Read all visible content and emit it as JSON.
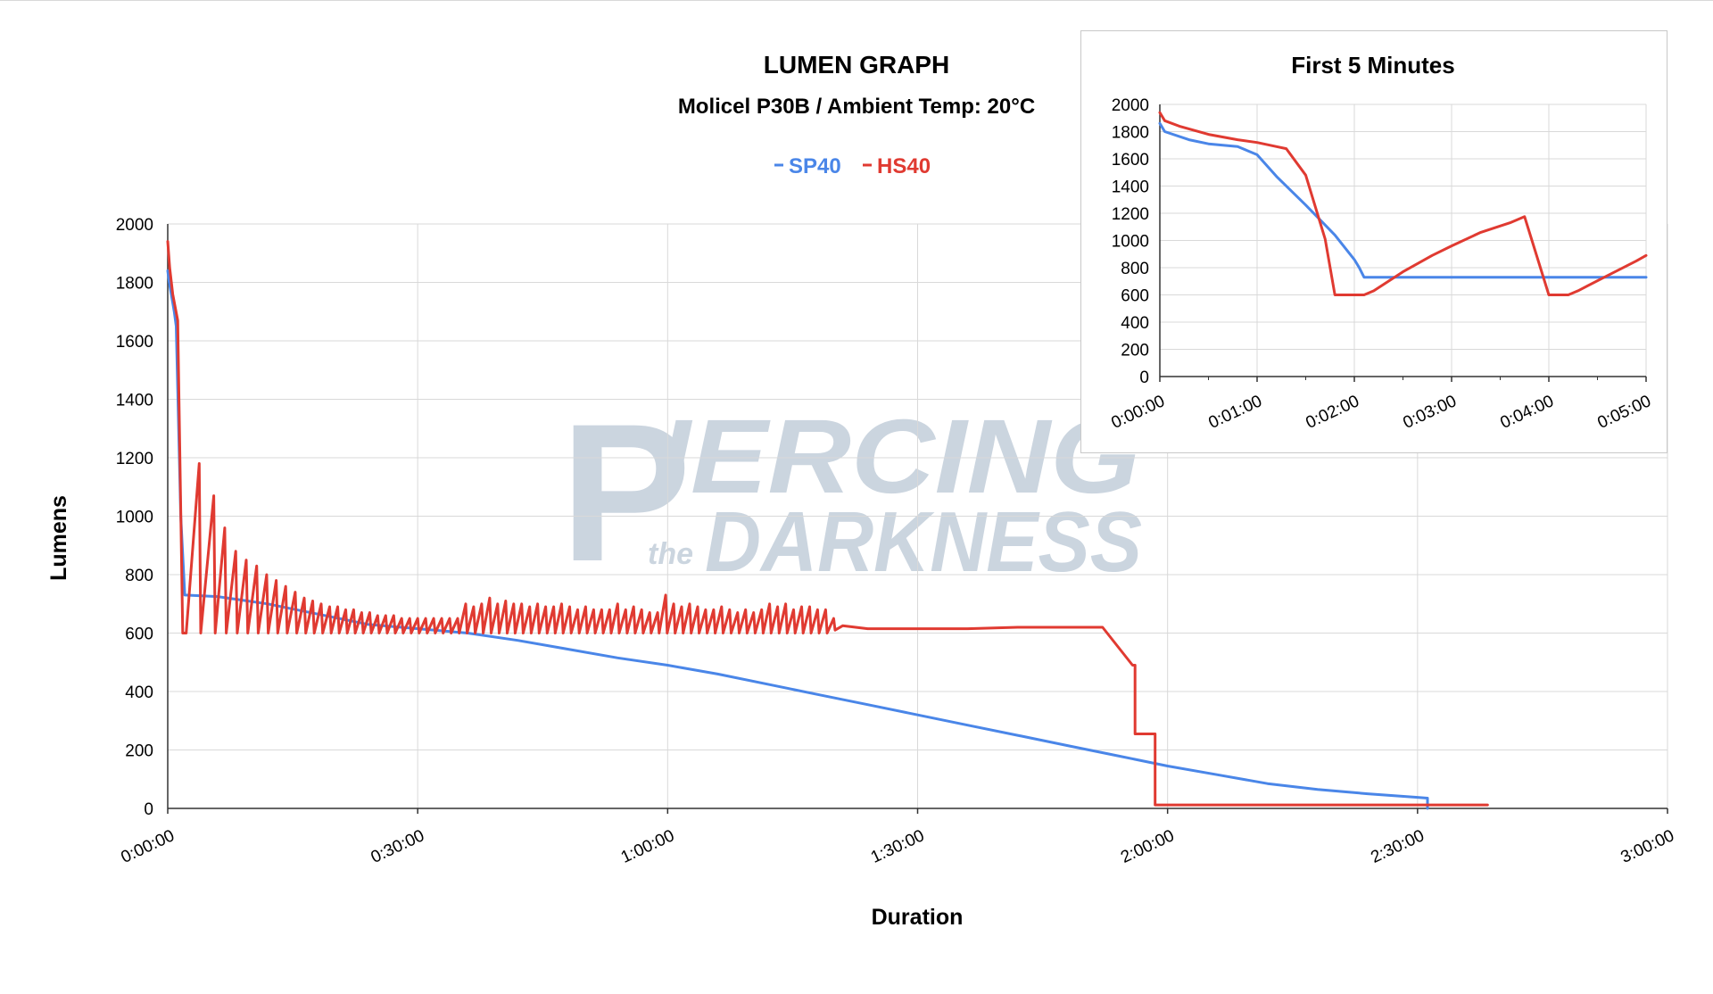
{
  "watermark": {
    "main": "IERCING",
    "sub": "DARKNESS",
    "small": "the",
    "initial": "P",
    "color": "#c9d3de"
  },
  "chart_data": [
    {
      "type": "line",
      "title": "LUMEN GRAPH",
      "subtitle": "Molicel P30B / Ambient Temp: 20°C",
      "xlabel": "Duration",
      "ylabel": "Lumens",
      "x_unit": "hours",
      "xlim": [
        0,
        3
      ],
      "ylim": [
        0,
        2000
      ],
      "yticks": [
        0,
        200,
        400,
        600,
        800,
        1000,
        1200,
        1400,
        1600,
        1800,
        2000
      ],
      "xticks": [
        {
          "x": 0,
          "label": "0:00:00"
        },
        {
          "x": 0.5,
          "label": "0:30:00"
        },
        {
          "x": 1,
          "label": "1:00:00"
        },
        {
          "x": 1.5,
          "label": "1:30:00"
        },
        {
          "x": 2,
          "label": "2:00:00"
        },
        {
          "x": 2.5,
          "label": "2:30:00"
        },
        {
          "x": 3,
          "label": "3:00:00"
        }
      ],
      "grid": true,
      "legend_position": "top-center",
      "series": [
        {
          "name": "SP40",
          "color": "#4a86e8",
          "points": [
            [
              0,
              1840
            ],
            [
              0.003,
              1800
            ],
            [
              0.013,
              1700
            ],
            [
              0.017,
              1650
            ],
            [
              0.026,
              1000
            ],
            [
              0.034,
              730
            ],
            [
              0.1,
              725
            ],
            [
              0.2,
              700
            ],
            [
              0.3,
              665
            ],
            [
              0.4,
              630
            ],
            [
              0.5,
              615
            ],
            [
              0.6,
              600
            ],
            [
              0.7,
              575
            ],
            [
              0.8,
              545
            ],
            [
              0.9,
              515
            ],
            [
              1.0,
              490
            ],
            [
              1.1,
              460
            ],
            [
              1.2,
              425
            ],
            [
              1.3,
              390
            ],
            [
              1.4,
              355
            ],
            [
              1.5,
              320
            ],
            [
              1.6,
              285
            ],
            [
              1.7,
              250
            ],
            [
              1.8,
              215
            ],
            [
              1.9,
              180
            ],
            [
              2.0,
              145
            ],
            [
              2.1,
              115
            ],
            [
              2.2,
              85
            ],
            [
              2.3,
              65
            ],
            [
              2.4,
              50
            ],
            [
              2.5,
              38
            ],
            [
              2.52,
              35
            ],
            [
              2.52,
              0
            ]
          ]
        },
        {
          "name": "HS40",
          "color": "#e03a31",
          "points": [
            [
              0,
              1940
            ],
            [
              0.004,
              1850
            ],
            [
              0.01,
              1760
            ],
            [
              0.02,
              1670
            ],
            [
              0.03,
              600
            ],
            [
              0.037,
              600
            ],
            [
              0.063,
              1180
            ],
            [
              0.066,
              600
            ],
            [
              0.092,
              1070
            ],
            [
              0.095,
              600
            ],
            [
              0.114,
              960
            ],
            [
              0.117,
              600
            ],
            [
              0.136,
              880
            ],
            [
              0.139,
              600
            ],
            [
              0.157,
              850
            ],
            [
              0.16,
              600
            ],
            [
              0.178,
              830
            ],
            [
              0.181,
              600
            ],
            [
              0.198,
              800
            ],
            [
              0.201,
              600
            ],
            [
              0.217,
              780
            ],
            [
              0.22,
              600
            ],
            [
              0.236,
              760
            ],
            [
              0.239,
              600
            ],
            [
              0.255,
              740
            ],
            [
              0.258,
              600
            ],
            [
              0.273,
              720
            ],
            [
              0.276,
              600
            ],
            [
              0.29,
              710
            ],
            [
              0.293,
              600
            ],
            [
              0.307,
              700
            ],
            [
              0.31,
              600
            ],
            [
              0.324,
              690
            ],
            [
              0.327,
              600
            ],
            [
              0.34,
              690
            ],
            [
              0.343,
              600
            ],
            [
              0.356,
              680
            ],
            [
              0.359,
              600
            ],
            [
              0.372,
              680
            ],
            [
              0.375,
              600
            ],
            [
              0.388,
              670
            ],
            [
              0.391,
              600
            ],
            [
              0.404,
              670
            ],
            [
              0.407,
              600
            ],
            [
              0.42,
              660
            ],
            [
              0.423,
              600
            ],
            [
              0.436,
              660
            ],
            [
              0.439,
              600
            ],
            [
              0.452,
              660
            ],
            [
              0.455,
              600
            ],
            [
              0.468,
              650
            ],
            [
              0.471,
              600
            ],
            [
              0.484,
              650
            ],
            [
              0.487,
              600
            ],
            [
              0.5,
              650
            ],
            [
              0.503,
              600
            ],
            [
              0.516,
              650
            ],
            [
              0.519,
              600
            ],
            [
              0.532,
              650
            ],
            [
              0.535,
              600
            ],
            [
              0.548,
              650
            ],
            [
              0.551,
              600
            ],
            [
              0.564,
              650
            ],
            [
              0.567,
              600
            ],
            [
              0.58,
              650
            ],
            [
              0.583,
              600
            ],
            [
              0.596,
              700
            ],
            [
              0.599,
              600
            ],
            [
              0.612,
              690
            ],
            [
              0.615,
              600
            ],
            [
              0.628,
              700
            ],
            [
              0.631,
              600
            ],
            [
              0.644,
              720
            ],
            [
              0.647,
              600
            ],
            [
              0.66,
              700
            ],
            [
              0.663,
              600
            ],
            [
              0.676,
              710
            ],
            [
              0.679,
              600
            ],
            [
              0.692,
              700
            ],
            [
              0.695,
              600
            ],
            [
              0.708,
              700
            ],
            [
              0.711,
              600
            ],
            [
              0.724,
              690
            ],
            [
              0.727,
              600
            ],
            [
              0.74,
              700
            ],
            [
              0.743,
              600
            ],
            [
              0.756,
              690
            ],
            [
              0.759,
              600
            ],
            [
              0.772,
              690
            ],
            [
              0.775,
              600
            ],
            [
              0.788,
              700
            ],
            [
              0.791,
              600
            ],
            [
              0.804,
              690
            ],
            [
              0.807,
              600
            ],
            [
              0.82,
              680
            ],
            [
              0.823,
              600
            ],
            [
              0.836,
              690
            ],
            [
              0.839,
              600
            ],
            [
              0.852,
              680
            ],
            [
              0.855,
              600
            ],
            [
              0.868,
              680
            ],
            [
              0.871,
              600
            ],
            [
              0.884,
              680
            ],
            [
              0.887,
              600
            ],
            [
              0.9,
              700
            ],
            [
              0.903,
              600
            ],
            [
              0.916,
              680
            ],
            [
              0.919,
              600
            ],
            [
              0.932,
              690
            ],
            [
              0.935,
              600
            ],
            [
              0.948,
              680
            ],
            [
              0.951,
              600
            ],
            [
              0.964,
              670
            ],
            [
              0.967,
              600
            ],
            [
              0.98,
              670
            ],
            [
              0.983,
              600
            ],
            [
              0.996,
              730
            ],
            [
              0.999,
              600
            ],
            [
              1.012,
              700
            ],
            [
              1.015,
              600
            ],
            [
              1.028,
              690
            ],
            [
              1.031,
              600
            ],
            [
              1.044,
              700
            ],
            [
              1.047,
              600
            ],
            [
              1.06,
              690
            ],
            [
              1.063,
              600
            ],
            [
              1.076,
              680
            ],
            [
              1.079,
              600
            ],
            [
              1.092,
              680
            ],
            [
              1.095,
              600
            ],
            [
              1.108,
              690
            ],
            [
              1.111,
              600
            ],
            [
              1.124,
              680
            ],
            [
              1.127,
              600
            ],
            [
              1.14,
              670
            ],
            [
              1.143,
              600
            ],
            [
              1.156,
              680
            ],
            [
              1.159,
              600
            ],
            [
              1.172,
              670
            ],
            [
              1.175,
              600
            ],
            [
              1.188,
              680
            ],
            [
              1.191,
              600
            ],
            [
              1.204,
              700
            ],
            [
              1.207,
              600
            ],
            [
              1.22,
              690
            ],
            [
              1.223,
              600
            ],
            [
              1.236,
              700
            ],
            [
              1.239,
              600
            ],
            [
              1.252,
              680
            ],
            [
              1.255,
              600
            ],
            [
              1.268,
              690
            ],
            [
              1.271,
              600
            ],
            [
              1.284,
              690
            ],
            [
              1.287,
              600
            ],
            [
              1.3,
              680
            ],
            [
              1.303,
              600
            ],
            [
              1.316,
              680
            ],
            [
              1.319,
              600
            ],
            [
              1.332,
              650
            ],
            [
              1.335,
              610
            ],
            [
              1.35,
              625
            ],
            [
              1.4,
              615
            ],
            [
              1.5,
              615
            ],
            [
              1.6,
              615
            ],
            [
              1.7,
              620
            ],
            [
              1.8,
              620
            ],
            [
              1.87,
              620
            ],
            [
              1.93,
              490
            ],
            [
              1.935,
              490
            ],
            [
              1.935,
              255
            ],
            [
              1.975,
              255
            ],
            [
              1.975,
              12
            ],
            [
              2.0,
              12
            ],
            [
              2.2,
              12
            ],
            [
              2.4,
              12
            ],
            [
              2.64,
              12
            ]
          ]
        }
      ]
    },
    {
      "type": "line",
      "title": "First 5 Minutes",
      "x_unit": "minutes",
      "xlim": [
        0,
        5
      ],
      "ylim": [
        0,
        2000
      ],
      "yticks": [
        0,
        200,
        400,
        600,
        800,
        1000,
        1200,
        1400,
        1600,
        1800,
        2000
      ],
      "xticks": [
        {
          "x": 0,
          "label": "0:00:00"
        },
        {
          "x": 1,
          "label": "0:01:00"
        },
        {
          "x": 2,
          "label": "0:02:00"
        },
        {
          "x": 3,
          "label": "0:03:00"
        },
        {
          "x": 4,
          "label": "0:04:00"
        },
        {
          "x": 5,
          "label": "0:05:00"
        }
      ],
      "grid": true,
      "series": [
        {
          "color": "#4a86e8",
          "points": [
            [
              0,
              1860
            ],
            [
              0.05,
              1800
            ],
            [
              0.3,
              1740
            ],
            [
              0.5,
              1710
            ],
            [
              0.8,
              1690
            ],
            [
              1.0,
              1630
            ],
            [
              1.2,
              1470
            ],
            [
              1.5,
              1260
            ],
            [
              1.8,
              1040
            ],
            [
              2.0,
              860
            ],
            [
              2.05,
              800
            ],
            [
              2.1,
              730
            ],
            [
              2.5,
              730
            ],
            [
              3.0,
              730
            ],
            [
              3.5,
              730
            ],
            [
              4.0,
              730
            ],
            [
              4.5,
              730
            ],
            [
              5.0,
              730
            ]
          ]
        },
        {
          "color": "#e03a31",
          "points": [
            [
              0,
              1940
            ],
            [
              0.05,
              1880
            ],
            [
              0.2,
              1840
            ],
            [
              0.5,
              1780
            ],
            [
              0.8,
              1740
            ],
            [
              1.0,
              1720
            ],
            [
              1.2,
              1690
            ],
            [
              1.3,
              1675
            ],
            [
              1.5,
              1480
            ],
            [
              1.7,
              1010
            ],
            [
              1.8,
              600
            ],
            [
              2.0,
              600
            ],
            [
              2.1,
              600
            ],
            [
              2.2,
              630
            ],
            [
              2.5,
              770
            ],
            [
              2.8,
              890
            ],
            [
              3.0,
              960
            ],
            [
              3.3,
              1060
            ],
            [
              3.6,
              1130
            ],
            [
              3.75,
              1175
            ],
            [
              4.0,
              600
            ],
            [
              4.2,
              600
            ],
            [
              4.3,
              630
            ],
            [
              4.6,
              740
            ],
            [
              4.9,
              850
            ],
            [
              5.0,
              890
            ]
          ]
        }
      ]
    }
  ]
}
